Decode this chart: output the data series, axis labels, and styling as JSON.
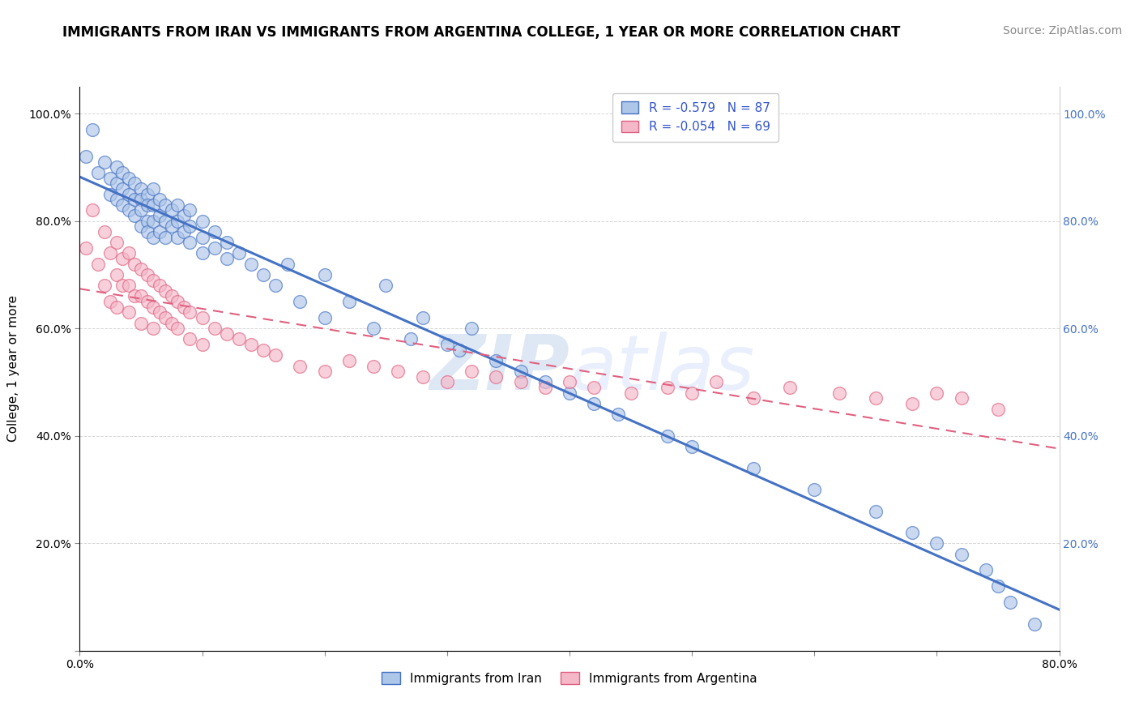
{
  "title": "IMMIGRANTS FROM IRAN VS IMMIGRANTS FROM ARGENTINA COLLEGE, 1 YEAR OR MORE CORRELATION CHART",
  "source": "Source: ZipAtlas.com",
  "xlabel": "",
  "ylabel": "College, 1 year or more",
  "legend_label1": "Immigrants from Iran",
  "legend_label2": "Immigrants from Argentina",
  "R1": -0.579,
  "N1": 87,
  "R2": -0.054,
  "N2": 69,
  "xlim": [
    0.0,
    0.8
  ],
  "ylim": [
    0.0,
    1.05
  ],
  "xticks": [
    0.0,
    0.1,
    0.2,
    0.3,
    0.4,
    0.5,
    0.6,
    0.7,
    0.8
  ],
  "xticklabels": [
    "0.0%",
    "",
    "",
    "",
    "",
    "",
    "",
    "",
    "80.0%"
  ],
  "yticks": [
    0.0,
    0.2,
    0.4,
    0.6,
    0.8,
    1.0
  ],
  "yticklabels": [
    "",
    "20.0%",
    "40.0%",
    "60.0%",
    "80.0%",
    "100.0%"
  ],
  "right_yticklabels": [
    "",
    "20.0%",
    "40.0%",
    "60.0%",
    "80.0%",
    "100.0%"
  ],
  "color_iran": "#aec6e8",
  "color_argentina": "#f4b8c8",
  "color_line_iran": "#4472c4",
  "color_line_argentina": "#e06080",
  "watermark_zip": "ZIP",
  "watermark_atlas": "atlas",
  "iran_x": [
    0.005,
    0.01,
    0.015,
    0.02,
    0.025,
    0.025,
    0.03,
    0.03,
    0.03,
    0.035,
    0.035,
    0.035,
    0.04,
    0.04,
    0.04,
    0.045,
    0.045,
    0.045,
    0.05,
    0.05,
    0.05,
    0.05,
    0.055,
    0.055,
    0.055,
    0.055,
    0.06,
    0.06,
    0.06,
    0.06,
    0.065,
    0.065,
    0.065,
    0.07,
    0.07,
    0.07,
    0.075,
    0.075,
    0.08,
    0.08,
    0.08,
    0.085,
    0.085,
    0.09,
    0.09,
    0.09,
    0.1,
    0.1,
    0.1,
    0.11,
    0.11,
    0.12,
    0.12,
    0.13,
    0.14,
    0.15,
    0.16,
    0.17,
    0.18,
    0.2,
    0.2,
    0.22,
    0.24,
    0.25,
    0.27,
    0.28,
    0.3,
    0.31,
    0.32,
    0.34,
    0.36,
    0.38,
    0.4,
    0.42,
    0.44,
    0.48,
    0.5,
    0.55,
    0.6,
    0.65,
    0.68,
    0.7,
    0.72,
    0.74,
    0.75,
    0.76,
    0.78
  ],
  "iran_y": [
    0.92,
    0.97,
    0.89,
    0.91,
    0.88,
    0.85,
    0.9,
    0.87,
    0.84,
    0.89,
    0.86,
    0.83,
    0.88,
    0.85,
    0.82,
    0.87,
    0.84,
    0.81,
    0.86,
    0.84,
    0.82,
    0.79,
    0.85,
    0.83,
    0.8,
    0.78,
    0.86,
    0.83,
    0.8,
    0.77,
    0.84,
    0.81,
    0.78,
    0.83,
    0.8,
    0.77,
    0.82,
    0.79,
    0.83,
    0.8,
    0.77,
    0.81,
    0.78,
    0.82,
    0.79,
    0.76,
    0.8,
    0.77,
    0.74,
    0.78,
    0.75,
    0.76,
    0.73,
    0.74,
    0.72,
    0.7,
    0.68,
    0.72,
    0.65,
    0.7,
    0.62,
    0.65,
    0.6,
    0.68,
    0.58,
    0.62,
    0.57,
    0.56,
    0.6,
    0.54,
    0.52,
    0.5,
    0.48,
    0.46,
    0.44,
    0.4,
    0.38,
    0.34,
    0.3,
    0.26,
    0.22,
    0.2,
    0.18,
    0.15,
    0.12,
    0.09,
    0.05
  ],
  "argentina_x": [
    0.005,
    0.01,
    0.015,
    0.02,
    0.02,
    0.025,
    0.025,
    0.03,
    0.03,
    0.03,
    0.035,
    0.035,
    0.04,
    0.04,
    0.04,
    0.045,
    0.045,
    0.05,
    0.05,
    0.05,
    0.055,
    0.055,
    0.06,
    0.06,
    0.06,
    0.065,
    0.065,
    0.07,
    0.07,
    0.075,
    0.075,
    0.08,
    0.08,
    0.085,
    0.09,
    0.09,
    0.1,
    0.1,
    0.11,
    0.12,
    0.13,
    0.14,
    0.15,
    0.16,
    0.18,
    0.2,
    0.22,
    0.24,
    0.26,
    0.28,
    0.3,
    0.32,
    0.34,
    0.36,
    0.38,
    0.4,
    0.42,
    0.45,
    0.48,
    0.5,
    0.52,
    0.55,
    0.58,
    0.62,
    0.65,
    0.68,
    0.7,
    0.72,
    0.75
  ],
  "argentina_y": [
    0.75,
    0.82,
    0.72,
    0.78,
    0.68,
    0.74,
    0.65,
    0.76,
    0.7,
    0.64,
    0.73,
    0.68,
    0.74,
    0.68,
    0.63,
    0.72,
    0.66,
    0.71,
    0.66,
    0.61,
    0.7,
    0.65,
    0.69,
    0.64,
    0.6,
    0.68,
    0.63,
    0.67,
    0.62,
    0.66,
    0.61,
    0.65,
    0.6,
    0.64,
    0.63,
    0.58,
    0.62,
    0.57,
    0.6,
    0.59,
    0.58,
    0.57,
    0.56,
    0.55,
    0.53,
    0.52,
    0.54,
    0.53,
    0.52,
    0.51,
    0.5,
    0.52,
    0.51,
    0.5,
    0.49,
    0.5,
    0.49,
    0.48,
    0.49,
    0.48,
    0.5,
    0.47,
    0.49,
    0.48,
    0.47,
    0.46,
    0.48,
    0.47,
    0.45
  ],
  "title_fontsize": 12,
  "source_fontsize": 10,
  "axis_label_fontsize": 11,
  "tick_fontsize": 10,
  "legend_fontsize": 11
}
